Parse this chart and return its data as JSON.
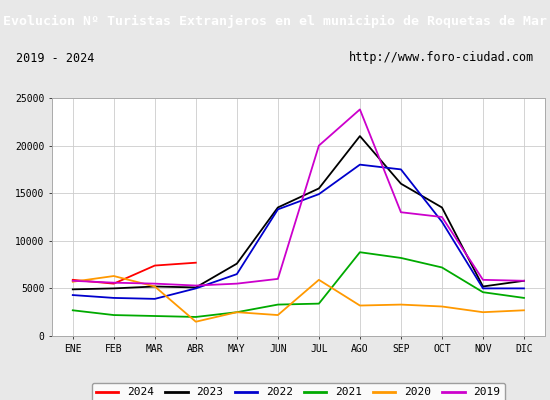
{
  "title": "Evolucion Nº Turistas Extranjeros en el municipio de Roquetas de Mar",
  "subtitle_left": "2019 - 2024",
  "subtitle_right": "http://www.foro-ciudad.com",
  "title_bg": "#3a6abf",
  "title_color": "white",
  "months": [
    "ENE",
    "FEB",
    "MAR",
    "ABR",
    "MAY",
    "JUN",
    "JUL",
    "AGO",
    "SEP",
    "OCT",
    "NOV",
    "DIC"
  ],
  "ylim": [
    0,
    25000
  ],
  "yticks": [
    0,
    5000,
    10000,
    15000,
    20000,
    25000
  ],
  "series": {
    "2024": {
      "color": "#ff0000",
      "data": [
        5900,
        5500,
        7400,
        7700,
        null,
        null,
        null,
        null,
        null,
        null,
        null,
        null
      ]
    },
    "2023": {
      "color": "#000000",
      "data": [
        4900,
        5000,
        5200,
        5100,
        7600,
        13500,
        15500,
        21000,
        16000,
        13500,
        5200,
        5800
      ]
    },
    "2022": {
      "color": "#0000cc",
      "data": [
        4300,
        4000,
        3900,
        5000,
        6500,
        13300,
        14900,
        18000,
        17500,
        12000,
        5000,
        5000
      ]
    },
    "2021": {
      "color": "#00aa00",
      "data": [
        2700,
        2200,
        2100,
        2000,
        2500,
        3300,
        3400,
        8800,
        8200,
        7200,
        4600,
        4000
      ]
    },
    "2020": {
      "color": "#ff9900",
      "data": [
        5700,
        6300,
        5200,
        1500,
        2500,
        2200,
        5900,
        3200,
        3300,
        3100,
        2500,
        2700
      ]
    },
    "2019": {
      "color": "#cc00cc",
      "data": [
        5800,
        5600,
        5500,
        5300,
        5500,
        6000,
        20000,
        23800,
        13000,
        12500,
        5900,
        5800
      ]
    }
  },
  "legend_order": [
    "2024",
    "2023",
    "2022",
    "2021",
    "2020",
    "2019"
  ],
  "bg_color": "#e8e8e8",
  "plot_bg": "#ffffff",
  "grid_color": "#cccccc",
  "subtitle_bg": "#f5f5f5"
}
